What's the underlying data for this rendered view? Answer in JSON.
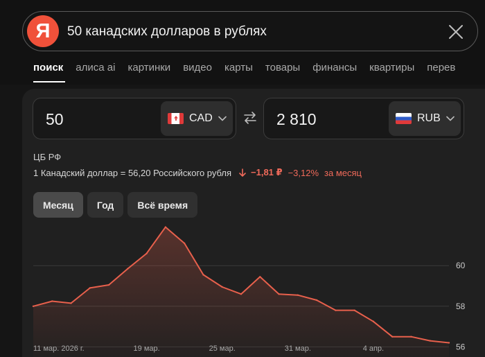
{
  "search": {
    "logo_letter": "Я",
    "query": "50 канадских долларов в рублях"
  },
  "tabs": [
    {
      "label": "поиск",
      "active": true
    },
    {
      "label": "алиса ai"
    },
    {
      "label": "картинки"
    },
    {
      "label": "видео"
    },
    {
      "label": "карты"
    },
    {
      "label": "товары"
    },
    {
      "label": "финансы"
    },
    {
      "label": "квартиры"
    },
    {
      "label": "перев"
    }
  ],
  "converter": {
    "from_amount": "50",
    "from_currency": "CAD",
    "to_amount": "2 810",
    "to_currency": "RUB",
    "source": "ЦБ РФ",
    "rate_text": "1 Канадский доллар = 56,20 Российского рубля",
    "change_abs": "−1,81 ₽",
    "change_pct": "−3,12%",
    "change_period": "за месяц"
  },
  "periods": {
    "month": "Месяц",
    "year": "Год",
    "all": "Всё время"
  },
  "colors": {
    "accent_line": "#e8604c",
    "negative": "#f06a5a",
    "logo": "#f0513a"
  },
  "chart_data": {
    "type": "area",
    "x": [
      "11 мар. 2026 г.",
      "12 мар.",
      "13 мар.",
      "14 мар.",
      "17 мар.",
      "18 мар.",
      "19 мар.",
      "20 мар.",
      "21 мар.",
      "24 мар.",
      "25 мар.",
      "26 мар.",
      "27 мар.",
      "28 мар.",
      "31 мар.",
      "1 апр.",
      "2 апр.",
      "3 апр.",
      "4 апр.",
      "5 апр.",
      "7 апр.",
      "8 апр.",
      "9 апр."
    ],
    "values": [
      58.0,
      58.25,
      58.15,
      58.9,
      59.05,
      59.85,
      60.6,
      61.9,
      61.1,
      59.55,
      58.95,
      58.6,
      59.45,
      58.6,
      58.55,
      58.3,
      57.8,
      57.8,
      57.25,
      56.5,
      56.5,
      56.3,
      56.2
    ],
    "x_tick_labels": [
      "11 мар. 2026 г.",
      "19 мар.",
      "25 мар.",
      "31 мар.",
      "4 апр."
    ],
    "x_tick_index": [
      0,
      6,
      10,
      14,
      18
    ],
    "y_ticks": [
      56,
      58,
      60
    ],
    "ylim": [
      55.5,
      62.5
    ],
    "grid": true
  }
}
